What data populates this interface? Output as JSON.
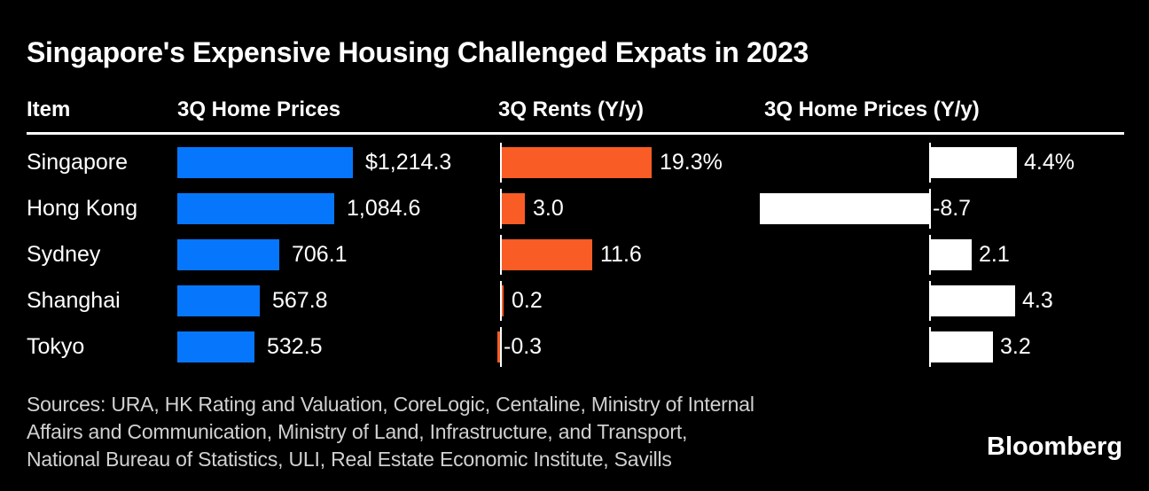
{
  "title": "Singapore's Expensive Housing Challenged Expats in 2023",
  "table": {
    "headers": [
      "Item",
      "3Q Home Prices",
      "3Q Rents (Y/y)",
      "3Q Home Prices (Y/y)"
    ]
  },
  "chart_data": {
    "type": "bar",
    "orientation": "horizontal",
    "title": "Singapore's Expensive Housing Challenged Expats in 2023",
    "categories": [
      "Singapore",
      "Hong Kong",
      "Sydney",
      "Shanghai",
      "Tokyo"
    ],
    "series": [
      {
        "name": "3Q Home Prices",
        "values": [
          1214.3,
          1084.6,
          706.1,
          567.8,
          532.5
        ],
        "labels": [
          "$1,214.3",
          "1,084.6",
          "706.1",
          "567.8",
          "532.5"
        ],
        "color": "#0677fc",
        "xlim": [
          0,
          1250
        ],
        "axis_line": false
      },
      {
        "name": "3Q Rents (Y/y)",
        "values": [
          19.3,
          3.0,
          11.6,
          0.2,
          -0.3
        ],
        "labels": [
          "19.3%",
          "3.0",
          "11.6",
          "0.2",
          "-0.3"
        ],
        "color": "#f95c25",
        "xlim": [
          -1,
          22
        ],
        "axis_line": true
      },
      {
        "name": "3Q Home Prices (Y/y)",
        "values": [
          4.4,
          -8.7,
          2.1,
          4.3,
          3.2
        ],
        "labels": [
          "4.4%",
          "-8.7",
          "2.1",
          "4.3",
          "3.2"
        ],
        "color": "#ffffff",
        "xlim": [
          -9,
          6
        ],
        "axis_line": true
      }
    ],
    "legend": "none",
    "grid": false,
    "background": "#000000",
    "bar_colors": {
      "home_prices": "#0677fc",
      "rents": "#f95c25",
      "home_prices_yoy": "#ffffff"
    }
  },
  "sources": {
    "lines": [
      "Sources: URA, HK Rating and Valuation, CoreLogic, Centaline, Ministry of Internal",
      "Affairs and Communication, Ministry of Land, Infrastructure, and Transport,",
      "National Bureau of Statistics, ULI, Real Estate Economic Institute, Savills"
    ]
  },
  "branding": {
    "logo_text": "Bloomberg"
  }
}
